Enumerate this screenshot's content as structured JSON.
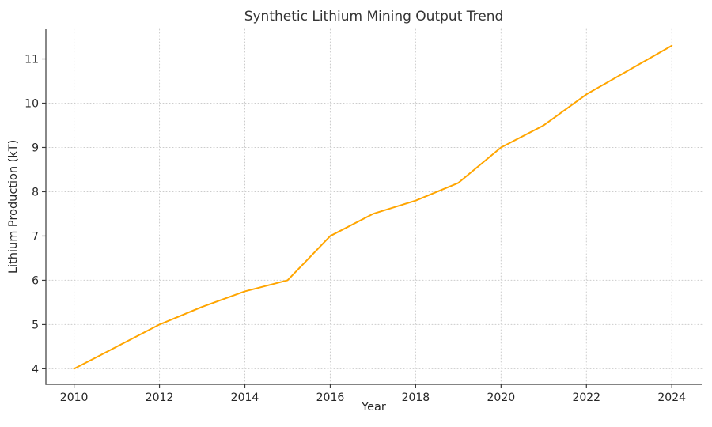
{
  "chart_data": {
    "type": "line",
    "title": "Synthetic Lithium Mining Output Trend",
    "xlabel": "Year",
    "ylabel": "Lithium Production (kT)",
    "x": [
      2010,
      2011,
      2012,
      2013,
      2014,
      2015,
      2016,
      2017,
      2018,
      2019,
      2020,
      2021,
      2022,
      2023,
      2024
    ],
    "values": [
      4.0,
      4.5,
      5.0,
      5.4,
      5.75,
      6.0,
      7.0,
      7.5,
      7.8,
      8.2,
      9.0,
      9.5,
      10.2,
      10.75,
      11.3
    ],
    "xticks": [
      2010,
      2012,
      2014,
      2016,
      2018,
      2020,
      2022,
      2024
    ],
    "yticks": [
      4,
      5,
      6,
      7,
      8,
      9,
      10,
      11
    ],
    "xlim": [
      2009.34,
      2024.7
    ],
    "ylim": [
      3.65,
      11.67
    ],
    "grid": true,
    "legend": false,
    "colors": {
      "line": "#FFA500",
      "grid": "#cccccc",
      "axis": "#3a3a3a",
      "text": "#262626"
    }
  }
}
